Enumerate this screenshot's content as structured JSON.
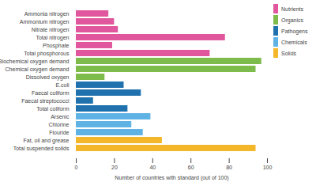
{
  "chart_data": {
    "type": "bar",
    "orientation": "horizontal",
    "x_label": "Number of countries with standard (out of 100)",
    "categories": [
      "Ammonia nitrogen",
      "Ammonium nitrogen",
      "Nitrate nitrogen",
      "Total nitrogen",
      "Phosphate",
      "Total phosphorous",
      "Biochemical oxygen demand",
      "Chemical oxygen demand",
      "Dissolved oxygen",
      "E.coli",
      "Faecal coliform",
      "Faecal streptococci",
      "Total coliform",
      "Arsenic",
      "Chlorine",
      "Flouride",
      "Fat, oil and grease",
      "Total suspended solids"
    ],
    "series": [
      {
        "name": "Nutrients",
        "color": "#e0579d",
        "values": [
          17,
          20,
          22,
          78,
          19,
          70,
          null,
          null,
          null,
          null,
          null,
          null,
          null,
          null,
          null,
          null,
          null,
          null
        ]
      },
      {
        "name": "Organics",
        "color": "#7dbb4a",
        "values": [
          null,
          null,
          null,
          null,
          null,
          null,
          97,
          94,
          15,
          null,
          null,
          null,
          null,
          null,
          null,
          null,
          null,
          null
        ]
      },
      {
        "name": "Pathogens",
        "color": "#1f72ad",
        "values": [
          null,
          null,
          null,
          null,
          null,
          null,
          null,
          null,
          null,
          25,
          34,
          9,
          27,
          null,
          null,
          null,
          null,
          null
        ]
      },
      {
        "name": "Chemicals",
        "color": "#5fb3e4",
        "values": [
          null,
          null,
          null,
          null,
          null,
          null,
          null,
          null,
          null,
          null,
          null,
          null,
          null,
          39,
          29,
          35,
          null,
          null
        ]
      },
      {
        "name": "Solids",
        "color": "#f4b72a",
        "values": [
          null,
          null,
          null,
          null,
          null,
          null,
          null,
          null,
          null,
          null,
          null,
          null,
          null,
          null,
          null,
          null,
          45,
          94
        ]
      }
    ],
    "xlim": [
      0,
      100
    ],
    "xticks": [
      0,
      20,
      40,
      60,
      80,
      100
    ],
    "grid": false,
    "legend": "right"
  }
}
